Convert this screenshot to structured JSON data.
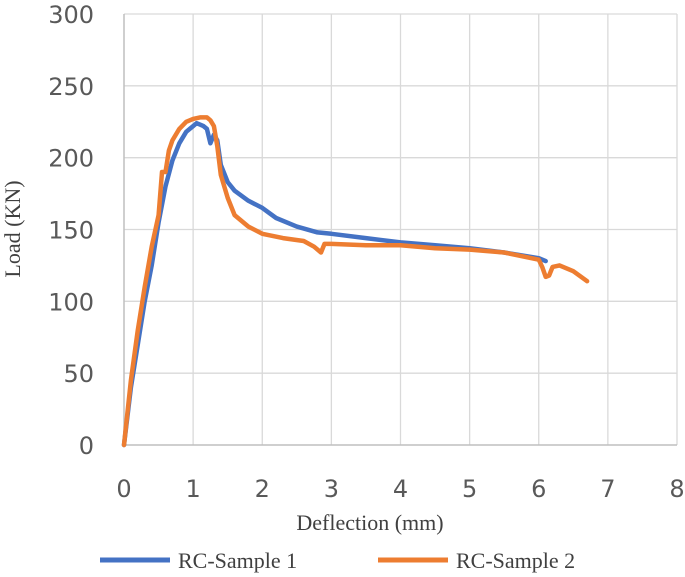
{
  "chart_data": {
    "type": "line",
    "title": "",
    "xlabel": "Deflection (mm)",
    "ylabel": "Load (KN)",
    "xlim": [
      0,
      8
    ],
    "ylim": [
      0,
      300
    ],
    "x_ticks": [
      0,
      1,
      2,
      3,
      4,
      5,
      6,
      7,
      8
    ],
    "y_ticks": [
      0,
      50,
      100,
      150,
      200,
      250,
      300
    ],
    "x_tick_labels": [
      "0",
      "1",
      "2",
      "3",
      "4",
      "5",
      "6",
      "7",
      "8"
    ],
    "y_tick_labels": [
      "0",
      "50",
      "100",
      "150",
      "200",
      "250",
      "300"
    ],
    "grid": true,
    "legend_position": "bottom",
    "series": [
      {
        "name": "RC-Sample 1",
        "color": "#4472c4",
        "x": [
          0,
          0.1,
          0.2,
          0.3,
          0.4,
          0.5,
          0.6,
          0.7,
          0.8,
          0.9,
          1.0,
          1.05,
          1.1,
          1.15,
          1.2,
          1.25,
          1.3,
          1.35,
          1.4,
          1.5,
          1.6,
          1.8,
          2.0,
          2.2,
          2.5,
          2.8,
          3.0,
          3.5,
          4.0,
          4.5,
          5.0,
          5.5,
          6.0,
          6.1
        ],
        "y": [
          0,
          40,
          70,
          100,
          125,
          155,
          180,
          198,
          210,
          218,
          222,
          224,
          223,
          222,
          220,
          210,
          216,
          212,
          195,
          183,
          177,
          170,
          165,
          158,
          152,
          148,
          147,
          144,
          141,
          139,
          137,
          134,
          130,
          128
        ]
      },
      {
        "name": "RC-Sample 2",
        "color": "#ed7d31",
        "x": [
          0,
          0.1,
          0.2,
          0.3,
          0.4,
          0.5,
          0.55,
          0.6,
          0.65,
          0.7,
          0.8,
          0.9,
          1.0,
          1.1,
          1.2,
          1.25,
          1.3,
          1.35,
          1.4,
          1.5,
          1.6,
          1.8,
          2.0,
          2.3,
          2.6,
          2.75,
          2.85,
          2.9,
          3.0,
          3.5,
          4.0,
          4.5,
          5.0,
          5.5,
          6.0,
          6.05,
          6.1,
          6.15,
          6.2,
          6.3,
          6.5,
          6.7
        ],
        "y": [
          0,
          45,
          80,
          110,
          138,
          160,
          190,
          190,
          205,
          212,
          220,
          225,
          227,
          228,
          228,
          226,
          222,
          208,
          188,
          172,
          160,
          152,
          147,
          144,
          142,
          138,
          134,
          140,
          140,
          139,
          139,
          137,
          136,
          134,
          129,
          124,
          117,
          118,
          124,
          125,
          121,
          114
        ]
      }
    ]
  }
}
